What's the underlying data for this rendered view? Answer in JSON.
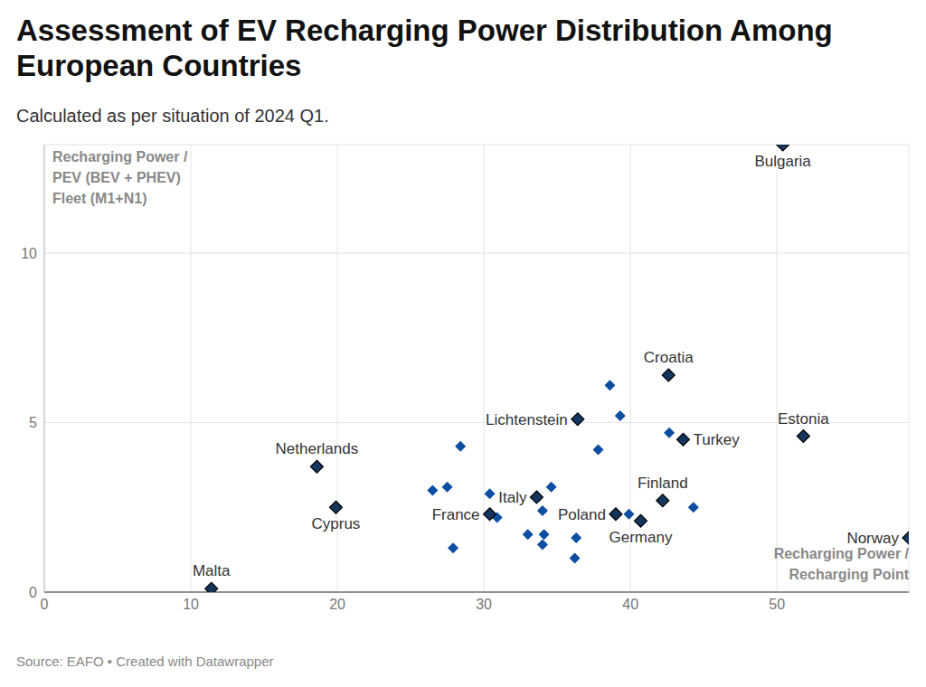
{
  "chart_data": {
    "type": "scatter",
    "title": "Assessment of EV Recharging Power Distribution Among European Countries",
    "subtitle": "Calculated as per situation of 2024 Q1.",
    "source": "Source: EAFO • Created with Datawrapper",
    "xlabel": "Recharging Power /\nRecharging Point",
    "ylabel": "Recharging Power /\nPEV (BEV + PHEV)\nFleet (M1+N1)",
    "x": [
      11.4,
      18.6,
      19.9,
      30.4,
      33.6,
      36.4,
      39.0,
      40.7,
      42.2,
      42.6,
      43.6,
      51.8,
      50.4,
      59.0,
      38.6,
      39.3,
      42.65,
      37.8,
      28.4,
      26.5,
      27.5,
      34.6,
      30.4,
      30.9,
      34.0,
      39.9,
      44.3,
      33.0,
      34.1,
      34.0,
      36.3,
      27.9,
      36.2
    ],
    "values": [
      0.1,
      3.7,
      2.5,
      2.3,
      2.8,
      5.1,
      2.3,
      2.1,
      2.7,
      6.4,
      4.5,
      4.6,
      13.2,
      1.6,
      6.1,
      5.2,
      4.7,
      4.2,
      4.3,
      3.0,
      3.1,
      3.1,
      2.9,
      2.2,
      2.4,
      2.3,
      2.5,
      1.7,
      1.7,
      1.4,
      1.6,
      1.3,
      1.0
    ],
    "labels": [
      "Malta",
      "Netherlands",
      "Cyprus",
      "France",
      "Italy",
      "Lichtenstein",
      "Poland",
      "Germany",
      "Finland",
      "Croatia",
      "Turkey",
      "Estonia",
      "Bulgaria",
      "Norway",
      null,
      null,
      null,
      null,
      null,
      null,
      null,
      null,
      null,
      null,
      null,
      null,
      null,
      null,
      null,
      null,
      null,
      null,
      null
    ],
    "colors": [
      "#14365e",
      "#14365e",
      "#14365e",
      "#14365e",
      "#14365e",
      "#14365e",
      "#14365e",
      "#14365e",
      "#14365e",
      "#14365e",
      "#14365e",
      "#14365e",
      "#14365e",
      "#14365e",
      "#0b4ea2",
      "#0b4ea2",
      "#0b4ea2",
      "#0b4ea2",
      "#0b4ea2",
      "#0b4ea2",
      "#0b4ea2",
      "#0b4ea2",
      "#0b4ea2",
      "#0b4ea2",
      "#0b4ea2",
      "#0b4ea2",
      "#0b4ea2",
      "#0b4ea2",
      "#0b4ea2",
      "#0b4ea2",
      "#0b4ea2",
      "#0b4ea2",
      "#0b4ea2"
    ],
    "marker": "diamond",
    "xlim": [
      0,
      59
    ],
    "ylim": [
      0,
      13.2
    ],
    "xticks": [
      0,
      10,
      20,
      30,
      40,
      50
    ],
    "yticks": [
      0,
      5,
      10
    ],
    "grid": true
  }
}
